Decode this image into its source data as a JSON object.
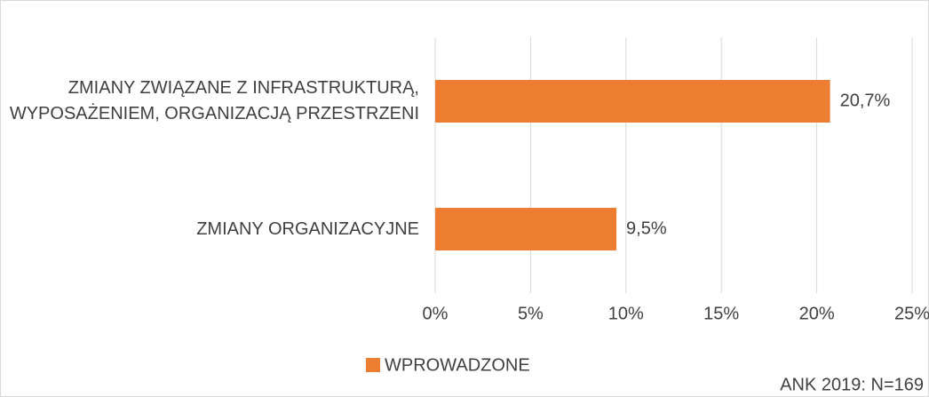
{
  "chart_data": {
    "type": "bar",
    "orientation": "horizontal",
    "categories": [
      "ZMIANY ZWIĄZANE Z INFRASTRUKTURĄ, WYPOSAŻENIEM, ORGANIZACJĄ PRZESTRZENI",
      "ZMIANY ORGANIZACYJNE"
    ],
    "series": [
      {
        "name": "WPROWADZONE",
        "color": "#ed7d31",
        "values": [
          20.7,
          9.5
        ],
        "value_labels": [
          "20,7%",
          "9,5%"
        ]
      }
    ],
    "xlim": [
      0,
      25
    ],
    "xticks": [
      {
        "value": 0,
        "label": "0%"
      },
      {
        "value": 5,
        "label": "5%"
      },
      {
        "value": 10,
        "label": "10%"
      },
      {
        "value": 15,
        "label": "15%"
      },
      {
        "value": 20,
        "label": "20%"
      },
      {
        "value": 25,
        "label": "25%"
      }
    ],
    "grid": true,
    "legend": "bottom",
    "annotation": "ANK 2019: N=169"
  }
}
